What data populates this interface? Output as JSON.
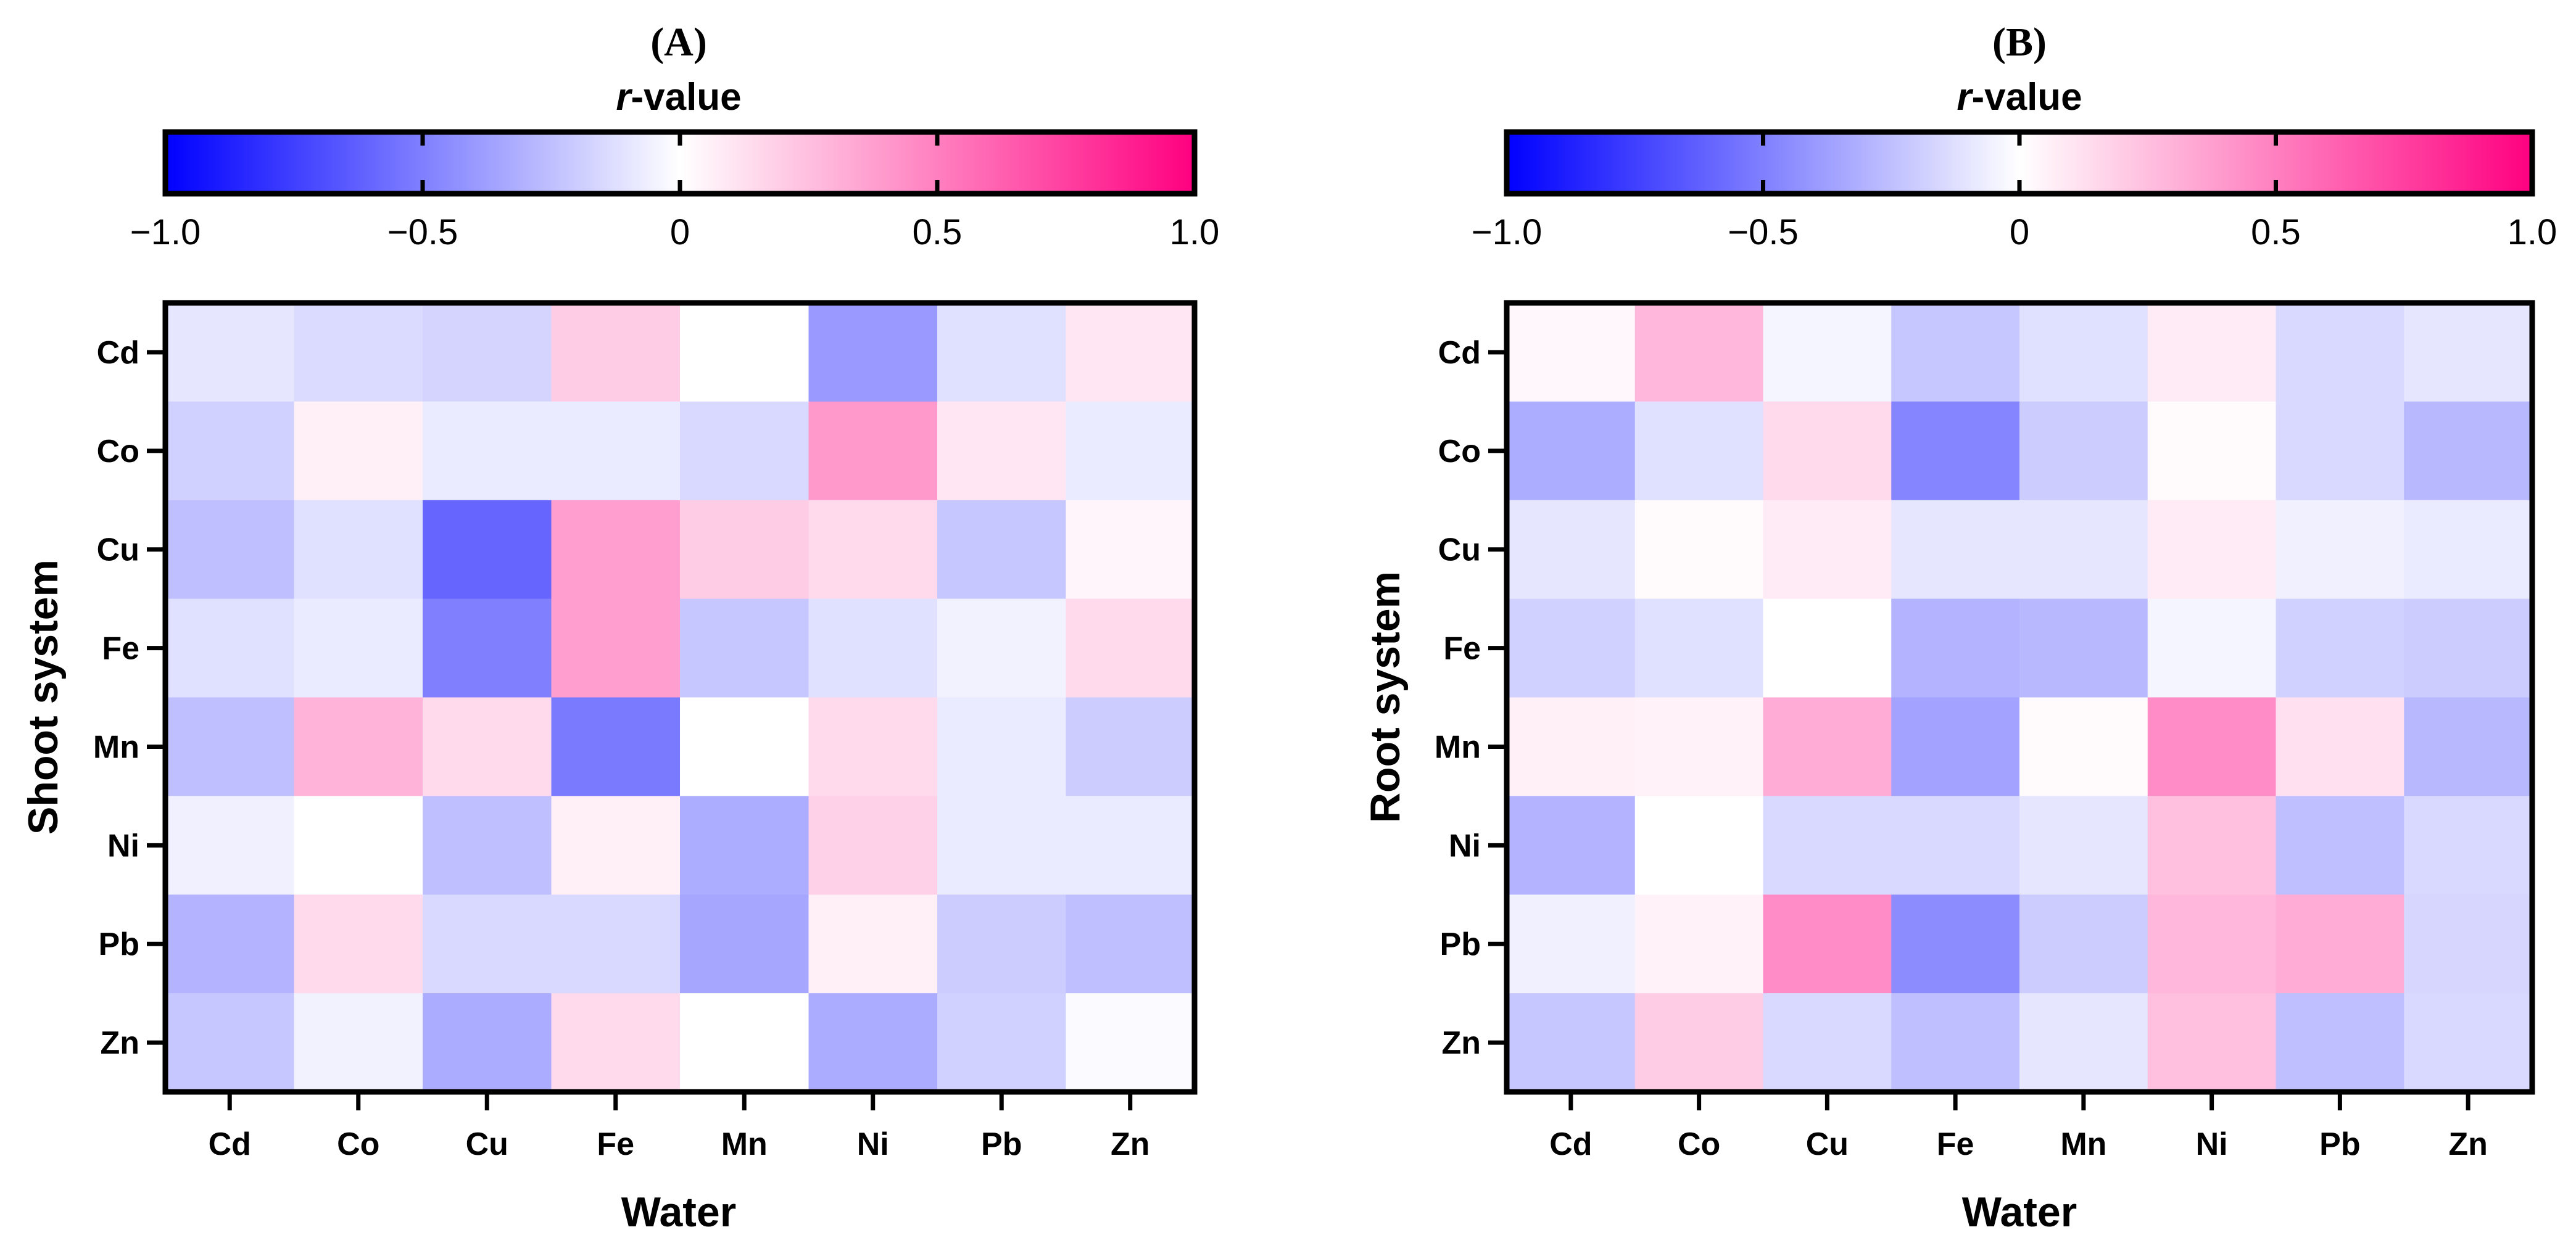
{
  "chart_data": [
    {
      "type": "heatmap",
      "panel_label": "(A)",
      "colorbar": {
        "title": "r-value",
        "title_italic_part": "r",
        "title_rest": "-value",
        "range": [
          -1.0,
          1.0
        ],
        "ticks": [
          -1.0,
          -0.5,
          0,
          0.5,
          1.0
        ],
        "tick_labels": [
          "−1.0",
          "−0.5",
          "0",
          "0.5",
          "1.0"
        ],
        "colors": {
          "negative": "#0000ff",
          "zero": "#ffffff",
          "positive": "#ff0080"
        }
      },
      "xlabel": "Water",
      "ylabel": "Shoot system",
      "x_categories": [
        "Cd",
        "Co",
        "Cu",
        "Fe",
        "Mn",
        "Ni",
        "Pb",
        "Zn"
      ],
      "y_categories": [
        "Cd",
        "Co",
        "Cu",
        "Fe",
        "Mn",
        "Ni",
        "Pb",
        "Zn"
      ],
      "values": [
        [
          -0.1,
          -0.14,
          -0.17,
          0.2,
          0.0,
          -0.4,
          -0.12,
          0.1
        ],
        [
          -0.18,
          0.06,
          -0.08,
          -0.08,
          -0.15,
          0.4,
          0.1,
          -0.08
        ],
        [
          -0.25,
          -0.12,
          -0.6,
          0.38,
          0.2,
          0.15,
          -0.22,
          0.04
        ],
        [
          -0.12,
          -0.08,
          -0.5,
          0.38,
          -0.22,
          -0.12,
          -0.05,
          0.15
        ],
        [
          -0.25,
          0.3,
          0.15,
          -0.52,
          0.0,
          0.15,
          -0.08,
          -0.2
        ],
        [
          -0.06,
          0.0,
          -0.25,
          0.06,
          -0.32,
          0.18,
          -0.08,
          -0.08
        ],
        [
          -0.3,
          0.15,
          -0.15,
          -0.15,
          -0.35,
          0.06,
          -0.2,
          -0.25
        ],
        [
          -0.22,
          -0.05,
          -0.33,
          0.15,
          0.0,
          -0.33,
          -0.18,
          -0.02
        ]
      ]
    },
    {
      "type": "heatmap",
      "panel_label": "(B)",
      "colorbar": {
        "title": "r-value",
        "title_italic_part": "r",
        "title_rest": "-value",
        "range": [
          -1.0,
          1.0
        ],
        "ticks": [
          -1.0,
          -0.5,
          0,
          0.5,
          1.0
        ],
        "tick_labels": [
          "−1.0",
          "−0.5",
          "0",
          "0.5",
          "1.0"
        ],
        "colors": {
          "negative": "#0000ff",
          "zero": "#ffffff",
          "positive": "#ff0080"
        }
      },
      "xlabel": "Water",
      "ylabel": "Root system",
      "x_categories": [
        "Cd",
        "Co",
        "Cu",
        "Fe",
        "Mn",
        "Ni",
        "Pb",
        "Zn"
      ],
      "y_categories": [
        "Cd",
        "Co",
        "Cu",
        "Fe",
        "Mn",
        "Ni",
        "Pb",
        "Zn"
      ],
      "values": [
        [
          0.03,
          0.28,
          -0.04,
          -0.22,
          -0.12,
          0.08,
          -0.15,
          -0.1
        ],
        [
          -0.32,
          -0.12,
          0.15,
          -0.48,
          -0.2,
          0.02,
          -0.15,
          -0.28
        ],
        [
          -0.1,
          0.02,
          0.08,
          -0.1,
          -0.1,
          0.08,
          -0.06,
          -0.08
        ],
        [
          -0.18,
          -0.12,
          0.0,
          -0.3,
          -0.28,
          -0.04,
          -0.18,
          -0.2
        ],
        [
          0.06,
          0.05,
          0.32,
          -0.36,
          0.02,
          0.45,
          0.12,
          -0.28
        ],
        [
          -0.3,
          0.0,
          -0.15,
          -0.15,
          -0.1,
          0.25,
          -0.25,
          -0.15
        ],
        [
          -0.06,
          0.05,
          0.45,
          -0.45,
          -0.2,
          0.28,
          0.32,
          -0.16
        ],
        [
          -0.22,
          0.2,
          -0.15,
          -0.25,
          -0.1,
          0.25,
          -0.25,
          -0.15
        ]
      ]
    }
  ]
}
